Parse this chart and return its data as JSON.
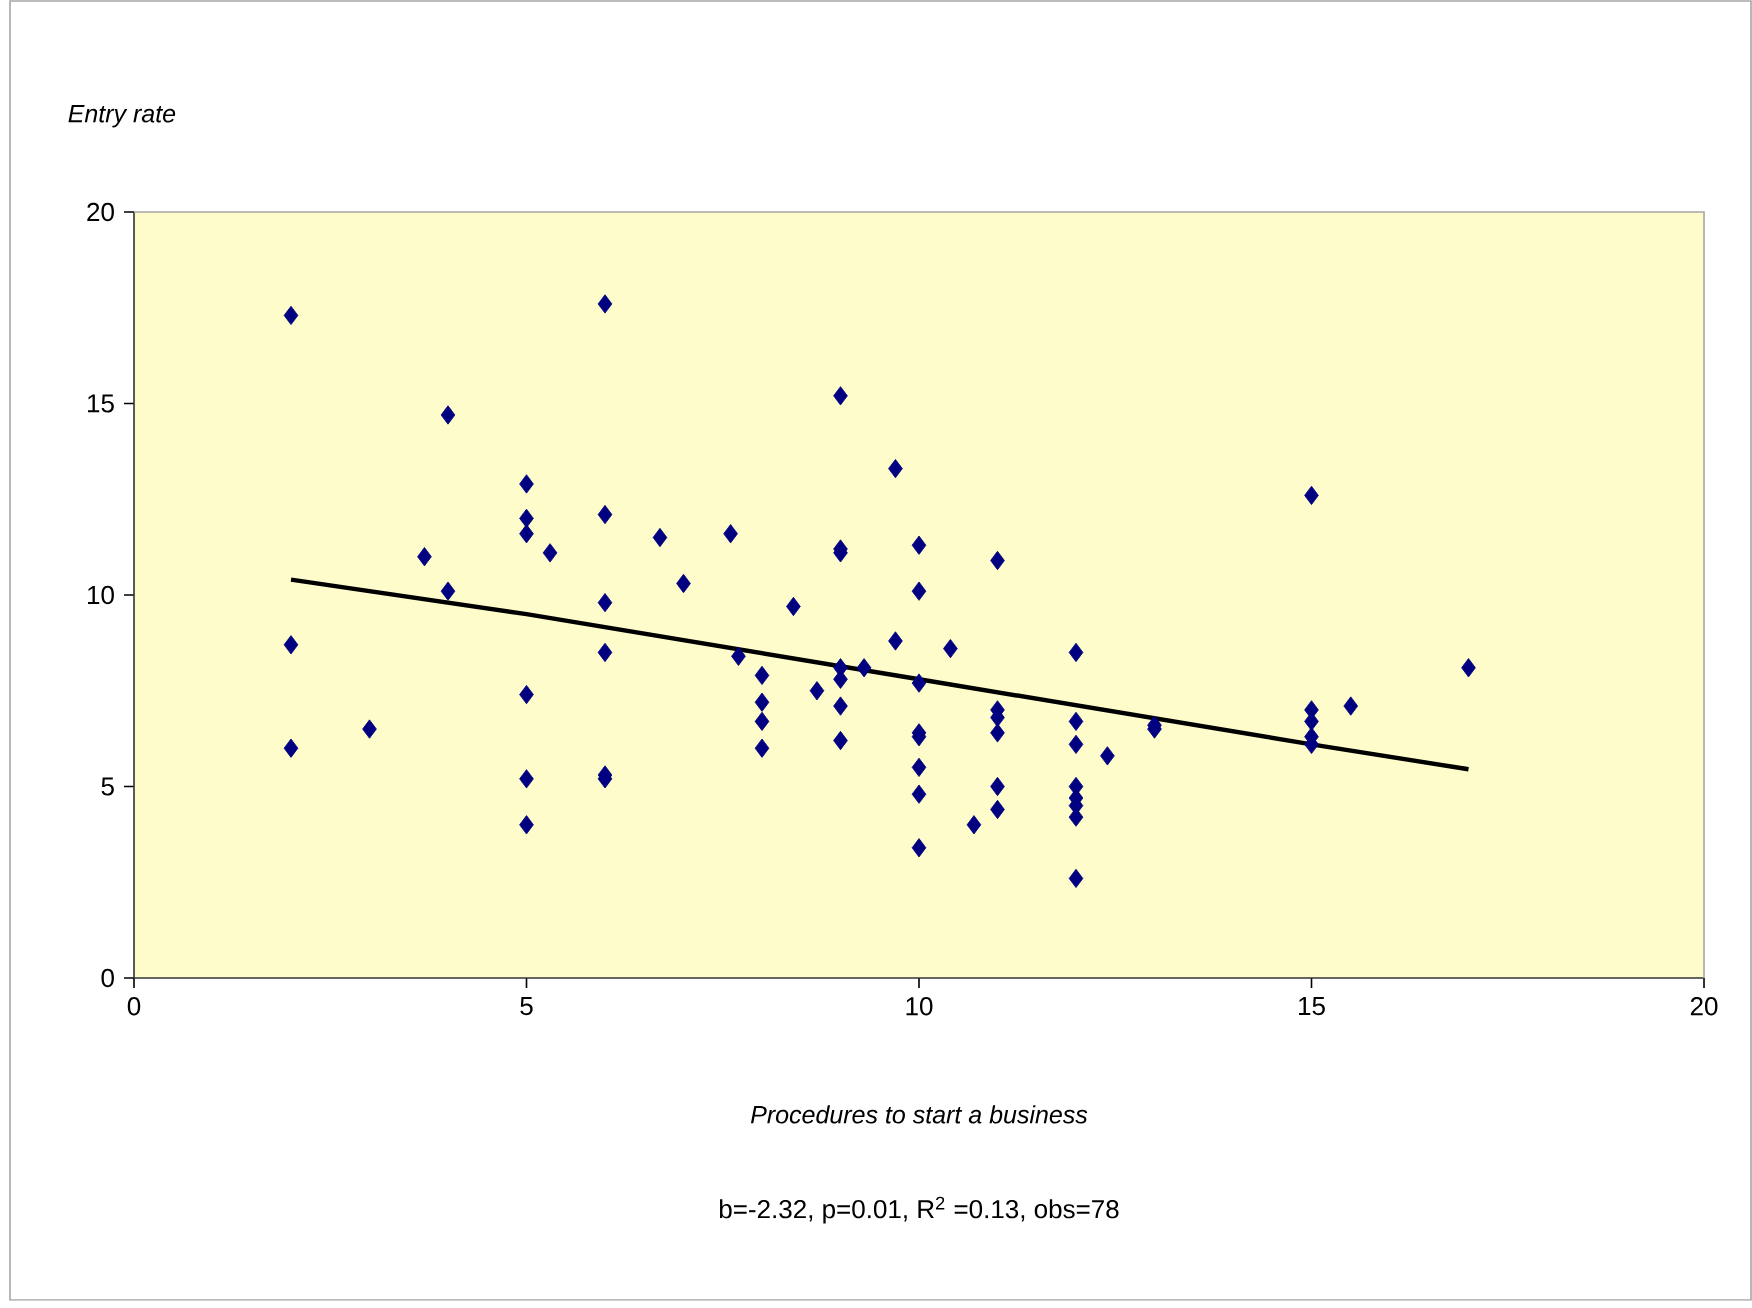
{
  "chart_data": {
    "type": "scatter",
    "xlabel": "Procedures to start a business",
    "ylabel": "Entry rate",
    "annotations": [
      "b=-2.32, p=0.01, R$^{2}$ =0.13, obs=78"
    ],
    "xlim": [
      0,
      20
    ],
    "ylim": [
      0,
      20
    ],
    "xticks": [
      0,
      5,
      10,
      15,
      20
    ],
    "yticks": [
      0,
      5,
      10,
      15,
      20
    ],
    "series": [
      {
        "marker": "diamond",
        "color": "#000080",
        "x": [
          2,
          2,
          2,
          3,
          3.7,
          4,
          4,
          5,
          5,
          5,
          5,
          5,
          5,
          5.3,
          6,
          6,
          6,
          6,
          6,
          6,
          6.7,
          7,
          7.6,
          7.7,
          8,
          8,
          8,
          8,
          8.4,
          8.7,
          9,
          9,
          9,
          9,
          9,
          9,
          9,
          9.3,
          9.7,
          9.7,
          10,
          10,
          10,
          10,
          10,
          10,
          10,
          10,
          10.4,
          10.7,
          11,
          11,
          11,
          11,
          11,
          11,
          12,
          12,
          12,
          12,
          12,
          12,
          12,
          12,
          12.4,
          13,
          13,
          15,
          15,
          15,
          15,
          15,
          15.5,
          17
        ],
        "values": [
          17.3,
          8.7,
          6.0,
          6.5,
          11.0,
          14.7,
          10.1,
          12.9,
          12.0,
          11.6,
          7.4,
          5.2,
          4.0,
          11.1,
          17.6,
          12.1,
          9.8,
          8.5,
          5.2,
          5.3,
          11.5,
          10.3,
          11.6,
          8.4,
          7.9,
          7.2,
          6.7,
          6.0,
          9.7,
          7.5,
          15.2,
          11.1,
          11.2,
          8.1,
          7.8,
          7.1,
          6.2,
          8.1,
          13.3,
          8.8,
          11.3,
          10.1,
          7.7,
          6.4,
          6.3,
          5.5,
          4.8,
          3.4,
          8.6,
          4.0,
          10.9,
          7.0,
          6.8,
          6.4,
          5.0,
          4.4,
          8.5,
          6.7,
          6.1,
          5.0,
          4.7,
          4.5,
          4.2,
          2.6,
          5.8,
          6.6,
          6.5,
          12.6,
          7.0,
          6.7,
          6.3,
          6.1,
          7.1,
          8.1
        ]
      },
      {
        "type": "line",
        "marker": "none",
        "color": "#000000",
        "x": [
          2,
          5,
          10,
          15,
          17
        ],
        "values": [
          10.4,
          9.5,
          7.8,
          6.1,
          5.45
        ]
      }
    ]
  }
}
